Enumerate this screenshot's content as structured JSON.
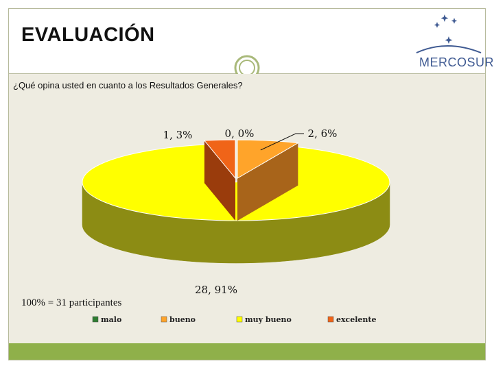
{
  "slide": {
    "title": "EVALUACIÓN",
    "logo_text": "MERCOSUR",
    "question": "¿Qué opina usted en cuanto a los Resultados Generales?",
    "note": "100% = 31 participantes"
  },
  "chart_data": {
    "type": "pie",
    "title": "",
    "total_label": "100% = 31 participantes",
    "legend_position": "bottom",
    "slices": [
      {
        "name": "malo",
        "count": 0,
        "percent": 0,
        "label": "0, 0%",
        "color": "#2e7d32",
        "side": "#1b4d1e"
      },
      {
        "name": "bueno",
        "count": 2,
        "percent": 6,
        "label": "2, 6%",
        "color": "#ffa42a",
        "side": "#a8641a"
      },
      {
        "name": "muy bueno",
        "count": 28,
        "percent": 91,
        "label": "28, 91%",
        "color": "#ffff00",
        "side": "#8c8c14"
      },
      {
        "name": "excelente",
        "count": 1,
        "percent": 3,
        "label": "1, 3%",
        "color": "#f06418",
        "side": "#9a3c0c"
      }
    ]
  }
}
